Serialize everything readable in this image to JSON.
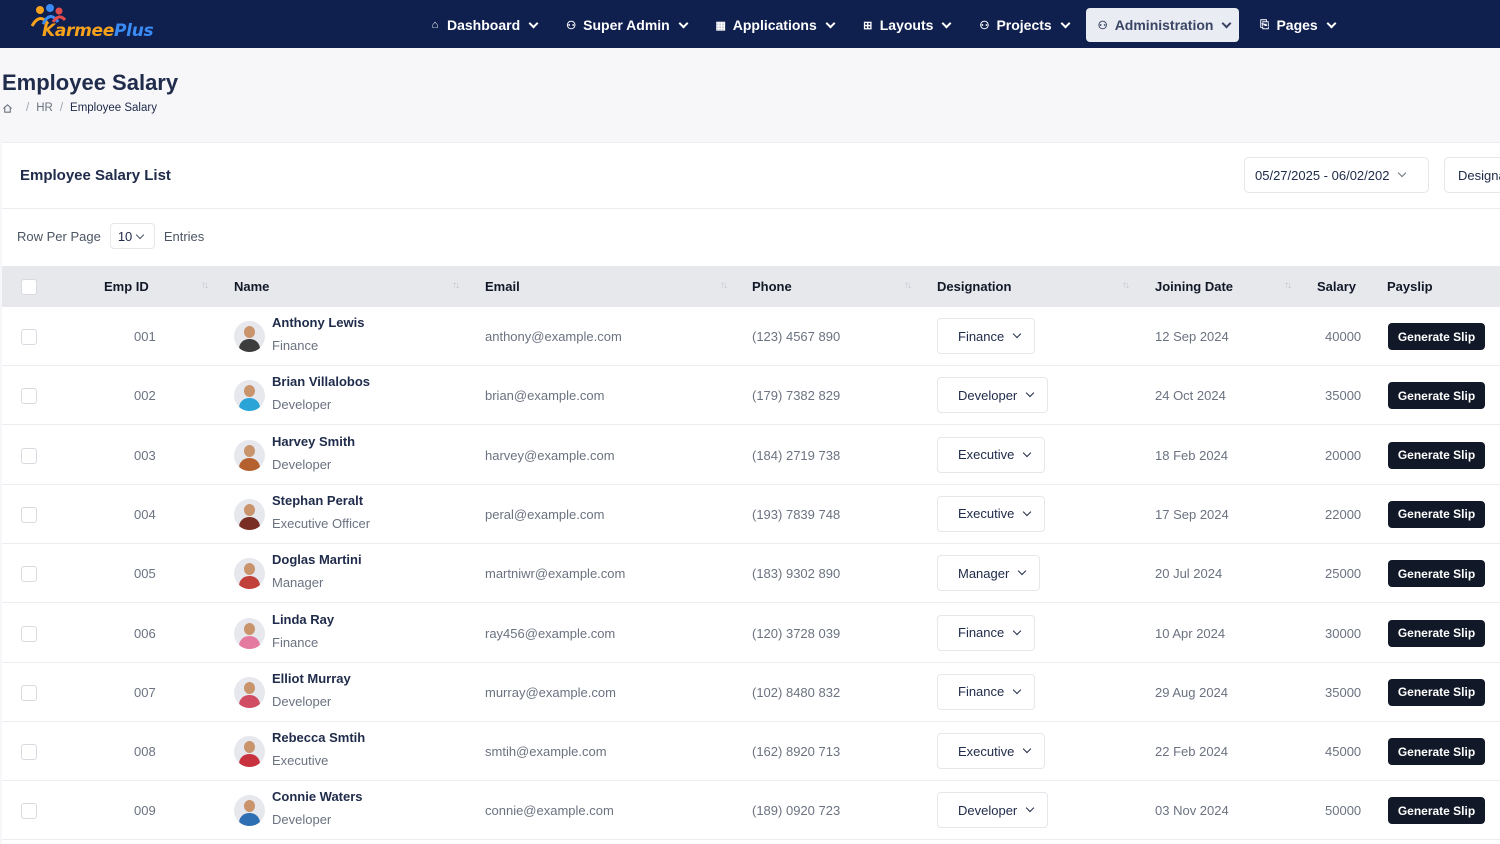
{
  "brand": {
    "name_main": "Karmee",
    "name_accent": "Plus"
  },
  "nav": [
    {
      "label": "Dashboard",
      "icon": "home-icon",
      "active": false
    },
    {
      "label": "Super Admin",
      "icon": "user-shield-icon",
      "active": false
    },
    {
      "label": "Applications",
      "icon": "apps-grid-icon",
      "active": false
    },
    {
      "label": "Layouts",
      "icon": "layout-icon",
      "active": false
    },
    {
      "label": "Projects",
      "icon": "user-icon",
      "active": false
    },
    {
      "label": "Administration",
      "icon": "user-gear-icon",
      "active": true
    },
    {
      "label": "Pages",
      "icon": "pages-icon",
      "active": false
    }
  ],
  "page": {
    "title": "Employee Salary",
    "breadcrumb": {
      "home_icon": "home-icon",
      "level1": "HR",
      "current": "Employee Salary"
    }
  },
  "card": {
    "title": "Employee Salary List",
    "date_range": "05/27/2025 - 06/02/202",
    "designation_filter": "Designa"
  },
  "pagination": {
    "label_before": "Row Per Page",
    "value": "10",
    "label_after": "Entries"
  },
  "table": {
    "headers": {
      "emp_id": "Emp ID",
      "name": "Name",
      "email": "Email",
      "phone": "Phone",
      "designation": "Designation",
      "joining_date": "Joining Date",
      "salary": "Salary",
      "payslip": "Payslip"
    },
    "action_label": "Generate Slip",
    "rows": [
      {
        "id": "001",
        "name": "Anthony Lewis",
        "role": "Finance",
        "email": "anthony@example.com",
        "phone": "(123) 4567 890",
        "designation": "Finance",
        "joining": "12 Sep 2024",
        "salary": "40000",
        "avatar_color": "#3d3d3d"
      },
      {
        "id": "002",
        "name": "Brian Villalobos",
        "role": "Developer",
        "email": "brian@example.com",
        "phone": "(179) 7382 829",
        "designation": "Developer",
        "joining": "24 Oct 2024",
        "salary": "35000",
        "avatar_color": "#2aa3d6"
      },
      {
        "id": "003",
        "name": "Harvey Smith",
        "role": "Developer",
        "email": "harvey@example.com",
        "phone": "(184) 2719 738",
        "designation": "Executive",
        "joining": "18 Feb 2024",
        "salary": "20000",
        "avatar_color": "#b5612f"
      },
      {
        "id": "004",
        "name": "Stephan Peralt",
        "role": "Executive Officer",
        "email": "peral@example.com",
        "phone": "(193) 7839 748",
        "designation": "Executive",
        "joining": "17 Sep 2024",
        "salary": "22000",
        "avatar_color": "#7a2f24"
      },
      {
        "id": "005",
        "name": "Doglas Martini",
        "role": "Manager",
        "email": "martniwr@example.com",
        "phone": "(183) 9302 890",
        "designation": "Manager",
        "joining": "20 Jul 2024",
        "salary": "25000",
        "avatar_color": "#c2403a"
      },
      {
        "id": "006",
        "name": "Linda Ray",
        "role": "Finance",
        "email": "ray456@example.com",
        "phone": "(120) 3728 039",
        "designation": "Finance",
        "joining": "10 Apr 2024",
        "salary": "30000",
        "avatar_color": "#e57aa0"
      },
      {
        "id": "007",
        "name": "Elliot Murray",
        "role": "Developer",
        "email": "murray@example.com",
        "phone": "(102) 8480 832",
        "designation": "Finance",
        "joining": "29 Aug 2024",
        "salary": "35000",
        "avatar_color": "#d04d62"
      },
      {
        "id": "008",
        "name": "Rebecca Smtih",
        "role": "Executive",
        "email": "smtih@example.com",
        "phone": "(162) 8920 713",
        "designation": "Executive",
        "joining": "22 Feb 2024",
        "salary": "45000",
        "avatar_color": "#c8323f"
      },
      {
        "id": "009",
        "name": "Connie Waters",
        "role": "Developer",
        "email": "connie@example.com",
        "phone": "(189) 0920 723",
        "designation": "Developer",
        "joining": "03 Nov 2024",
        "salary": "50000",
        "avatar_color": "#2e6fb3"
      }
    ]
  }
}
